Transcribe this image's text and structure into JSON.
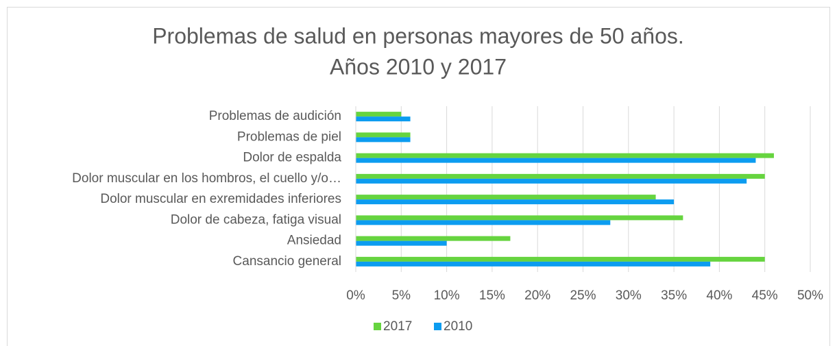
{
  "chart_data": {
    "type": "hbar",
    "title": [
      "Problemas de salud en personas mayores de 50 años.",
      "Años 2010 y 2017"
    ],
    "categories": [
      "Problemas de audición",
      "Problemas de piel",
      "Dolor de espalda",
      "Dolor muscular en los hombros, el cuello y/o…",
      "Dolor muscular en exremidades inferiores",
      "Dolor de cabeza, fatiga visual",
      "Ansiedad",
      "Cansancio general"
    ],
    "series": [
      {
        "name": "2017",
        "color": "#66d43f",
        "values": [
          5,
          6,
          46,
          45,
          33,
          36,
          17,
          45
        ]
      },
      {
        "name": "2010",
        "color": "#0c9cf0",
        "values": [
          6,
          6,
          44,
          43,
          35,
          28,
          10,
          39
        ]
      }
    ],
    "xlim": [
      0,
      50
    ],
    "xticks": [
      {
        "value": 0,
        "label": "0%"
      },
      {
        "value": 5,
        "label": "5%"
      },
      {
        "value": 10,
        "label": "10%"
      },
      {
        "value": 15,
        "label": "15%"
      },
      {
        "value": 20,
        "label": "20%"
      },
      {
        "value": 25,
        "label": "25%"
      },
      {
        "value": 30,
        "label": "30%"
      },
      {
        "value": 35,
        "label": "35%"
      },
      {
        "value": 40,
        "label": "40%"
      },
      {
        "value": 45,
        "label": "45%"
      },
      {
        "value": 50,
        "label": "50%"
      }
    ],
    "grid": true,
    "legend": "bottom"
  }
}
